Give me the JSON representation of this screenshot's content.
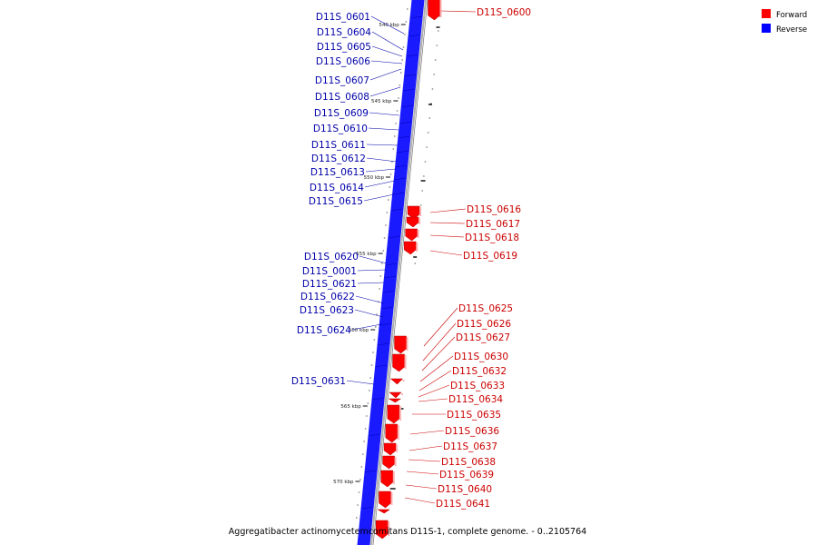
{
  "caption": "Aggregatibacter actinomycetemcomitans D11S-1, complete genome. - 0..2105764",
  "legend": [
    {
      "label": "Forward",
      "color": "#ff0000"
    },
    {
      "label": "Reverse",
      "color": "#0000ff"
    }
  ],
  "colors": {
    "forward": "#ff0000",
    "reverse": "#1a1aff",
    "reverse_dark": "#0000b0",
    "axis": "#b0b0b0",
    "forward_label": "#cc0000",
    "reverse_label": "#0000aa",
    "tick": "#333333"
  },
  "ticks": [
    "540 kbp",
    "545 kbp",
    "550 kbp",
    "555 kbp",
    "560 kbp",
    "565 kbp",
    "570 kbp"
  ],
  "reverse_genes": [
    "D11S_0601",
    "D11S_0604",
    "D11S_0605",
    "D11S_0606",
    "D11S_0607",
    "D11S_0608",
    "D11S_0609",
    "D11S_0610",
    "D11S_0611",
    "D11S_0612",
    "D11S_0613",
    "D11S_0614",
    "D11S_0615",
    "D11S_0620",
    "D11S_0001",
    "D11S_0621",
    "D11S_0622",
    "D11S_0623",
    "D11S_0624",
    "D11S_0631"
  ],
  "forward_genes": [
    "D11S_0600",
    "D11S_0616",
    "D11S_0617",
    "D11S_0618",
    "D11S_0619",
    "D11S_0625",
    "D11S_0626",
    "D11S_0627",
    "D11S_0630",
    "D11S_0632",
    "D11S_0633",
    "D11S_0634",
    "D11S_0635",
    "D11S_0636",
    "D11S_0637",
    "D11S_0638",
    "D11S_0639",
    "D11S_0640",
    "D11S_0641"
  ]
}
